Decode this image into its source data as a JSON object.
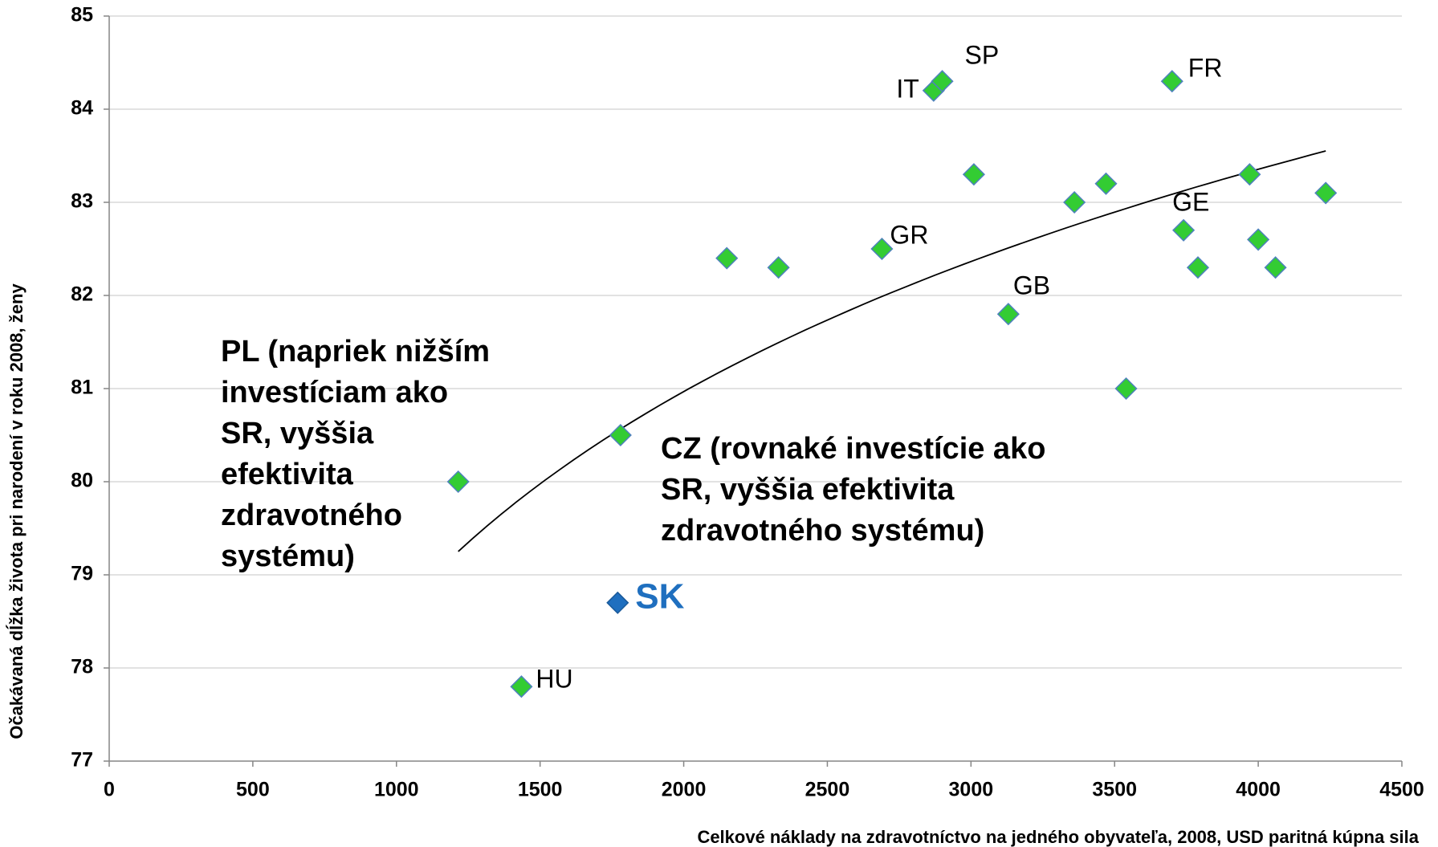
{
  "chart_data": {
    "type": "scatter",
    "x_label": "Celkové náklady na zdravotníctvo na jedného obyvateľa, 2008,  USD paritná kúpna sila",
    "y_label": "Očakávaná dĺžka života pri narodení v roku 2008, ženy",
    "xlim": [
      0,
      4500
    ],
    "ylim": [
      77,
      85
    ],
    "xticks": [
      0,
      500,
      1000,
      1500,
      2000,
      2500,
      3000,
      3500,
      4000,
      4500
    ],
    "yticks": [
      77,
      78,
      79,
      80,
      81,
      82,
      83,
      84,
      85
    ],
    "grid": true,
    "color": "#33cc33",
    "highlight_color": "#1f6fbf",
    "x": [
      1215,
      1435,
      1770,
      1780,
      2150,
      2330,
      2690,
      2870,
      2900,
      3010,
      3130,
      3360,
      3470,
      3540,
      3700,
      3740,
      3790,
      3970,
      4000,
      4060,
      4235
    ],
    "values": [
      80.0,
      77.8,
      78.7,
      80.5,
      82.4,
      82.3,
      82.5,
      84.2,
      84.3,
      83.3,
      81.8,
      83.0,
      83.2,
      81.0,
      84.3,
      82.7,
      82.3,
      83.3,
      82.6,
      82.3,
      83.1
    ],
    "labels": [
      null,
      "HU",
      "SK",
      null,
      null,
      null,
      "GR",
      "IT",
      "SP",
      null,
      "GB",
      null,
      null,
      null,
      "FR",
      "GE",
      null,
      null,
      null,
      null,
      null
    ],
    "highlight": "SK",
    "trendline": {
      "type": "log",
      "a": 54.79,
      "b": 3.444,
      "x": [
        1215,
        4235
      ]
    },
    "annotations": [
      [
        "PL (napriek nižším",
        "investíciam ako",
        "SR, vyššia",
        "efektivita",
        "zdravotného",
        "systému)"
      ],
      [
        "CZ (rovnaké investície ako",
        "SR, vyššia efektivita",
        "zdravotného systému)"
      ]
    ]
  }
}
